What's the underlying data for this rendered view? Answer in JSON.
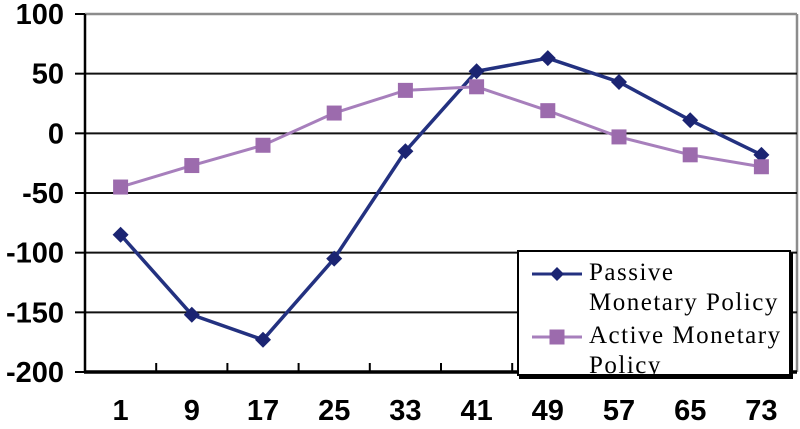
{
  "chart_data": {
    "type": "line",
    "title": "",
    "xlabel": "",
    "ylabel": "",
    "categories": [
      "1",
      "9",
      "17",
      "25",
      "33",
      "41",
      "49",
      "57",
      "65",
      "73"
    ],
    "series": [
      {
        "name": "Passive Monetary Policy",
        "marker": "diamond",
        "line_color": "#233180",
        "marker_color": "#1B2472",
        "values": [
          -85,
          -152,
          -173,
          -105,
          -15,
          52,
          63,
          43,
          11,
          -18
        ]
      },
      {
        "name": "Active Monetary Policy",
        "marker": "square",
        "line_color": "#A77FBC",
        "marker_color": "#9C6BAD",
        "values": [
          -45,
          -27,
          -10,
          17,
          36,
          39,
          19,
          -3,
          -18,
          -28
        ]
      }
    ],
    "ylim": [
      -200,
      100
    ],
    "y_ticks": [
      "100",
      "50",
      "0",
      "-50",
      "-100",
      "-150",
      "-200"
    ],
    "grid": "horizontal",
    "legend_position": "inside-bottom-right"
  },
  "colors": {
    "background": "#FFFFFF",
    "axis": "#000000",
    "gridline": "#111111",
    "plot_border_gray": "#8C8C8C",
    "text": "#000000"
  }
}
